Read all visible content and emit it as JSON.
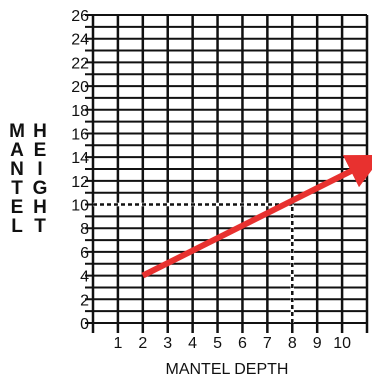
{
  "chart_data": {
    "type": "line",
    "title": "",
    "xlabel": "MANTEL DEPTH",
    "ylabel_left": "MANTEL",
    "ylabel_right": "HEIGHT",
    "xlim": [
      0,
      11
    ],
    "ylim": [
      0,
      26
    ],
    "x_ticks": [
      1,
      2,
      3,
      4,
      5,
      6,
      7,
      8,
      9,
      10
    ],
    "y_ticks": [
      0,
      2,
      4,
      6,
      8,
      10,
      12,
      14,
      16,
      18,
      20,
      22,
      24,
      26
    ],
    "grid": true,
    "series": [
      {
        "x": [
          2,
          11
        ],
        "y": [
          4,
          13.5
        ],
        "color": "#e8312f",
        "arrow": true
      }
    ],
    "reference_lines": [
      {
        "x": [
          8,
          8
        ],
        "y": [
          0,
          10
        ],
        "style": "dashed"
      },
      {
        "x": [
          0,
          8
        ],
        "y": [
          10,
          10
        ],
        "style": "dashed"
      }
    ]
  }
}
